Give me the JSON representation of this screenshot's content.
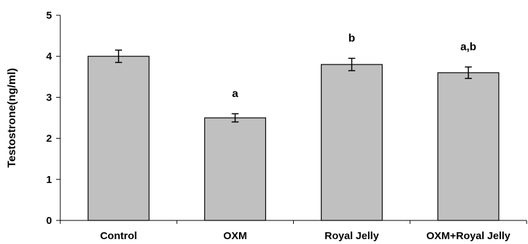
{
  "chart_data": {
    "type": "bar",
    "title": "",
    "xlabel": "",
    "ylabel": "Testostrone(ng/ml)",
    "ylim": [
      0,
      5
    ],
    "yticks": [
      0,
      1,
      2,
      3,
      4,
      5
    ],
    "categories": [
      "Control",
      "OXM",
      "Royal Jelly",
      "OXM+Royal Jelly"
    ],
    "values": [
      4.0,
      2.5,
      3.8,
      3.6
    ],
    "error": [
      0.15,
      0.1,
      0.15,
      0.14
    ],
    "significance_labels": [
      "",
      "a",
      "b",
      "a,b"
    ],
    "grid": false,
    "legend": "none",
    "colors": {
      "bar_fill": "#c0c0c0",
      "bar_stroke": "#000000",
      "axis": "#000000"
    }
  }
}
